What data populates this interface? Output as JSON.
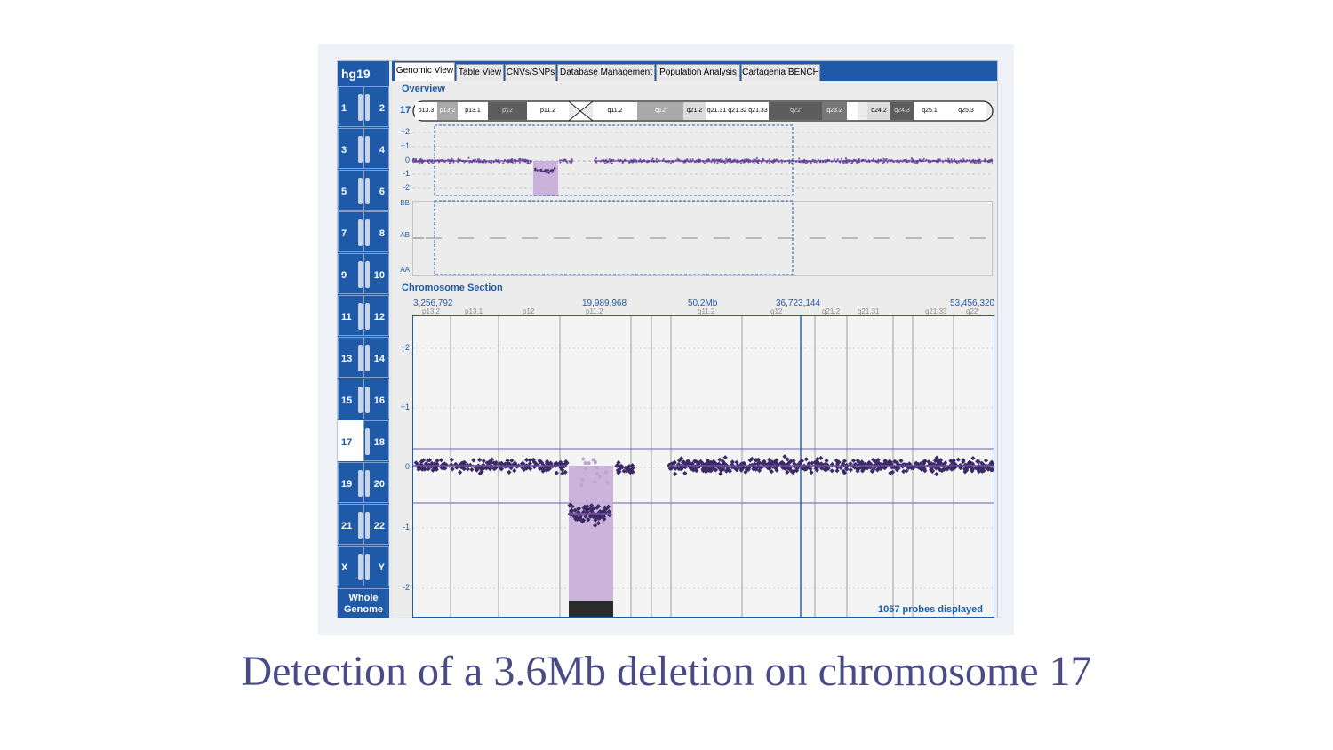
{
  "genome_build": "hg19",
  "chromosome_pairs": [
    [
      "1",
      "2"
    ],
    [
      "3",
      "4"
    ],
    [
      "5",
      "6"
    ],
    [
      "7",
      "8"
    ],
    [
      "9",
      "10"
    ],
    [
      "11",
      "12"
    ],
    [
      "13",
      "14"
    ],
    [
      "15",
      "16"
    ],
    [
      "17",
      "18"
    ],
    [
      "19",
      "20"
    ],
    [
      "21",
      "22"
    ],
    [
      "X",
      "Y"
    ]
  ],
  "selected_chromosome": "17",
  "whole_genome_label": "Whole Genome",
  "tabs": [
    "Genomic View",
    "Table View",
    "CNVs/SNPs",
    "Database Management",
    "Population Analysis",
    "Cartagenia BENCH"
  ],
  "active_tab": "Genomic View",
  "overview": {
    "title": "Overview",
    "chromosome_label": "17",
    "bands": [
      "p13.3",
      "p13.2",
      "p13.1",
      "p12",
      "p11.2",
      "q11.2",
      "q12",
      "q21.2",
      "q21.31",
      "q21.32",
      "q21.33",
      "q22",
      "q23.2",
      "q24.2",
      "q24.3",
      "q25.1",
      "q25.3"
    ],
    "cn_axis_labels": [
      "+2",
      "+1",
      "0",
      "-1",
      "-2"
    ],
    "baf_axis_labels": [
      "BB",
      "AB",
      "AA"
    ]
  },
  "section": {
    "title": "Chromosome Section",
    "positions": [
      "3,256,792",
      "19,989,968",
      "50.2Mb",
      "36,723,144",
      "53,456,320"
    ],
    "bands": [
      "p13.2",
      "p13.1",
      "p12",
      "p11.2",
      "q11.2",
      "q12",
      "q21.2",
      "q21.31",
      "q21.33",
      "q22"
    ],
    "y_axis_labels": [
      "+2",
      "+1",
      "0",
      "-1",
      "-2"
    ],
    "probes_label": "1057 probes displayed"
  },
  "colors": {
    "accent": "#1e5aa8",
    "probe": "#3b2a63",
    "deletion_highlight": "#c7acd8"
  },
  "caption": "Detection of a 3.6Mb deletion on chromosome 17"
}
